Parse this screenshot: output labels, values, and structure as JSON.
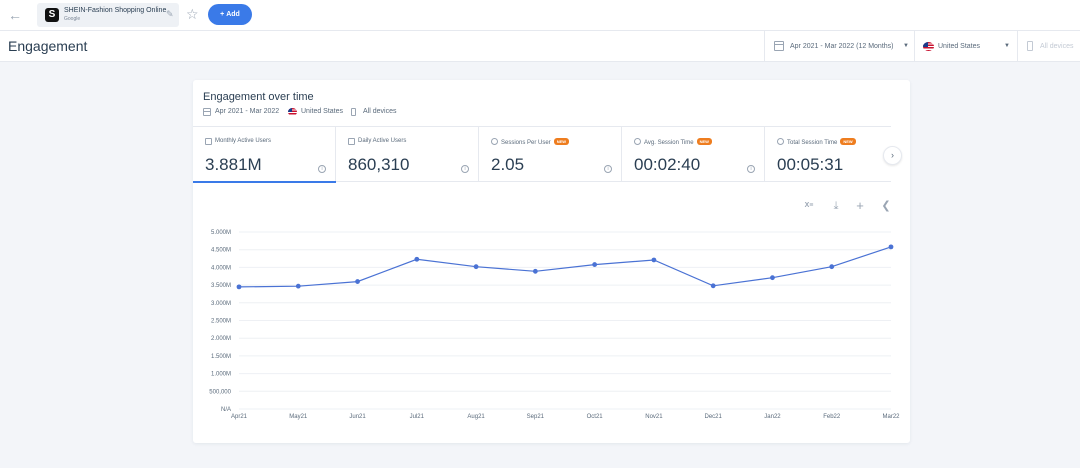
{
  "topbar": {
    "app_name": "SHEIN-Fashion Shopping Online",
    "app_store": "Google",
    "app_logo_letter": "S",
    "add_label": "Add",
    "add_icon": "+"
  },
  "header": {
    "title": "Engagement",
    "date_filter": "Apr 2021 - Mar 2022 (12 Months)",
    "country_filter": "United States",
    "device_filter": "All devices"
  },
  "card": {
    "title": "Engagement over time",
    "meta_date": "Apr 2021 - Mar 2022",
    "meta_country": "United States",
    "meta_device": "All devices",
    "metrics": [
      {
        "label": "Monthly Active Users",
        "value": "3.881M",
        "new": false,
        "active": true
      },
      {
        "label": "Daily Active Users",
        "value": "860,310",
        "new": false,
        "active": false
      },
      {
        "label": "Sessions Per User",
        "value": "2.05",
        "new": true,
        "active": false
      },
      {
        "label": "Avg. Session Time",
        "value": "00:02:40",
        "new": true,
        "active": false
      },
      {
        "label": "Total Session Time",
        "value": "00:05:31",
        "new": true,
        "active": false
      }
    ],
    "new_badge": "NEW",
    "toolbar": {
      "excel_label": "X≡"
    }
  },
  "colors": {
    "accent": "#3a7ae8",
    "line": "#4a72d4",
    "new_badge": "#ee7d1f"
  },
  "chart_data": {
    "type": "line",
    "categories": [
      "Apr21",
      "May21",
      "Jun21",
      "Jul21",
      "Aug21",
      "Sep21",
      "Oct21",
      "Nov21",
      "Dec21",
      "Jan22",
      "Feb22",
      "Mar22"
    ],
    "series": [
      {
        "values": [
          3450000,
          3470000,
          3600000,
          4230000,
          4020000,
          3890000,
          4080000,
          4210000,
          3480000,
          3710000,
          4020000,
          4580000
        ]
      }
    ],
    "y_ticks": [
      {
        "label": "N/A",
        "value": 0
      },
      {
        "label": "500,000",
        "value": 500000
      },
      {
        "label": "1.000M",
        "value": 1000000
      },
      {
        "label": "1.500M",
        "value": 1500000
      },
      {
        "label": "2.000M",
        "value": 2000000
      },
      {
        "label": "2.500M",
        "value": 2500000
      },
      {
        "label": "3.000M",
        "value": 3000000
      },
      {
        "label": "3.500M",
        "value": 3500000
      },
      {
        "label": "4.000M",
        "value": 4000000
      },
      {
        "label": "4.500M",
        "value": 4500000
      },
      {
        "label": "5.000M",
        "value": 5000000
      }
    ],
    "ylim": [
      0,
      5000000
    ],
    "grid": true,
    "legend": "none"
  }
}
